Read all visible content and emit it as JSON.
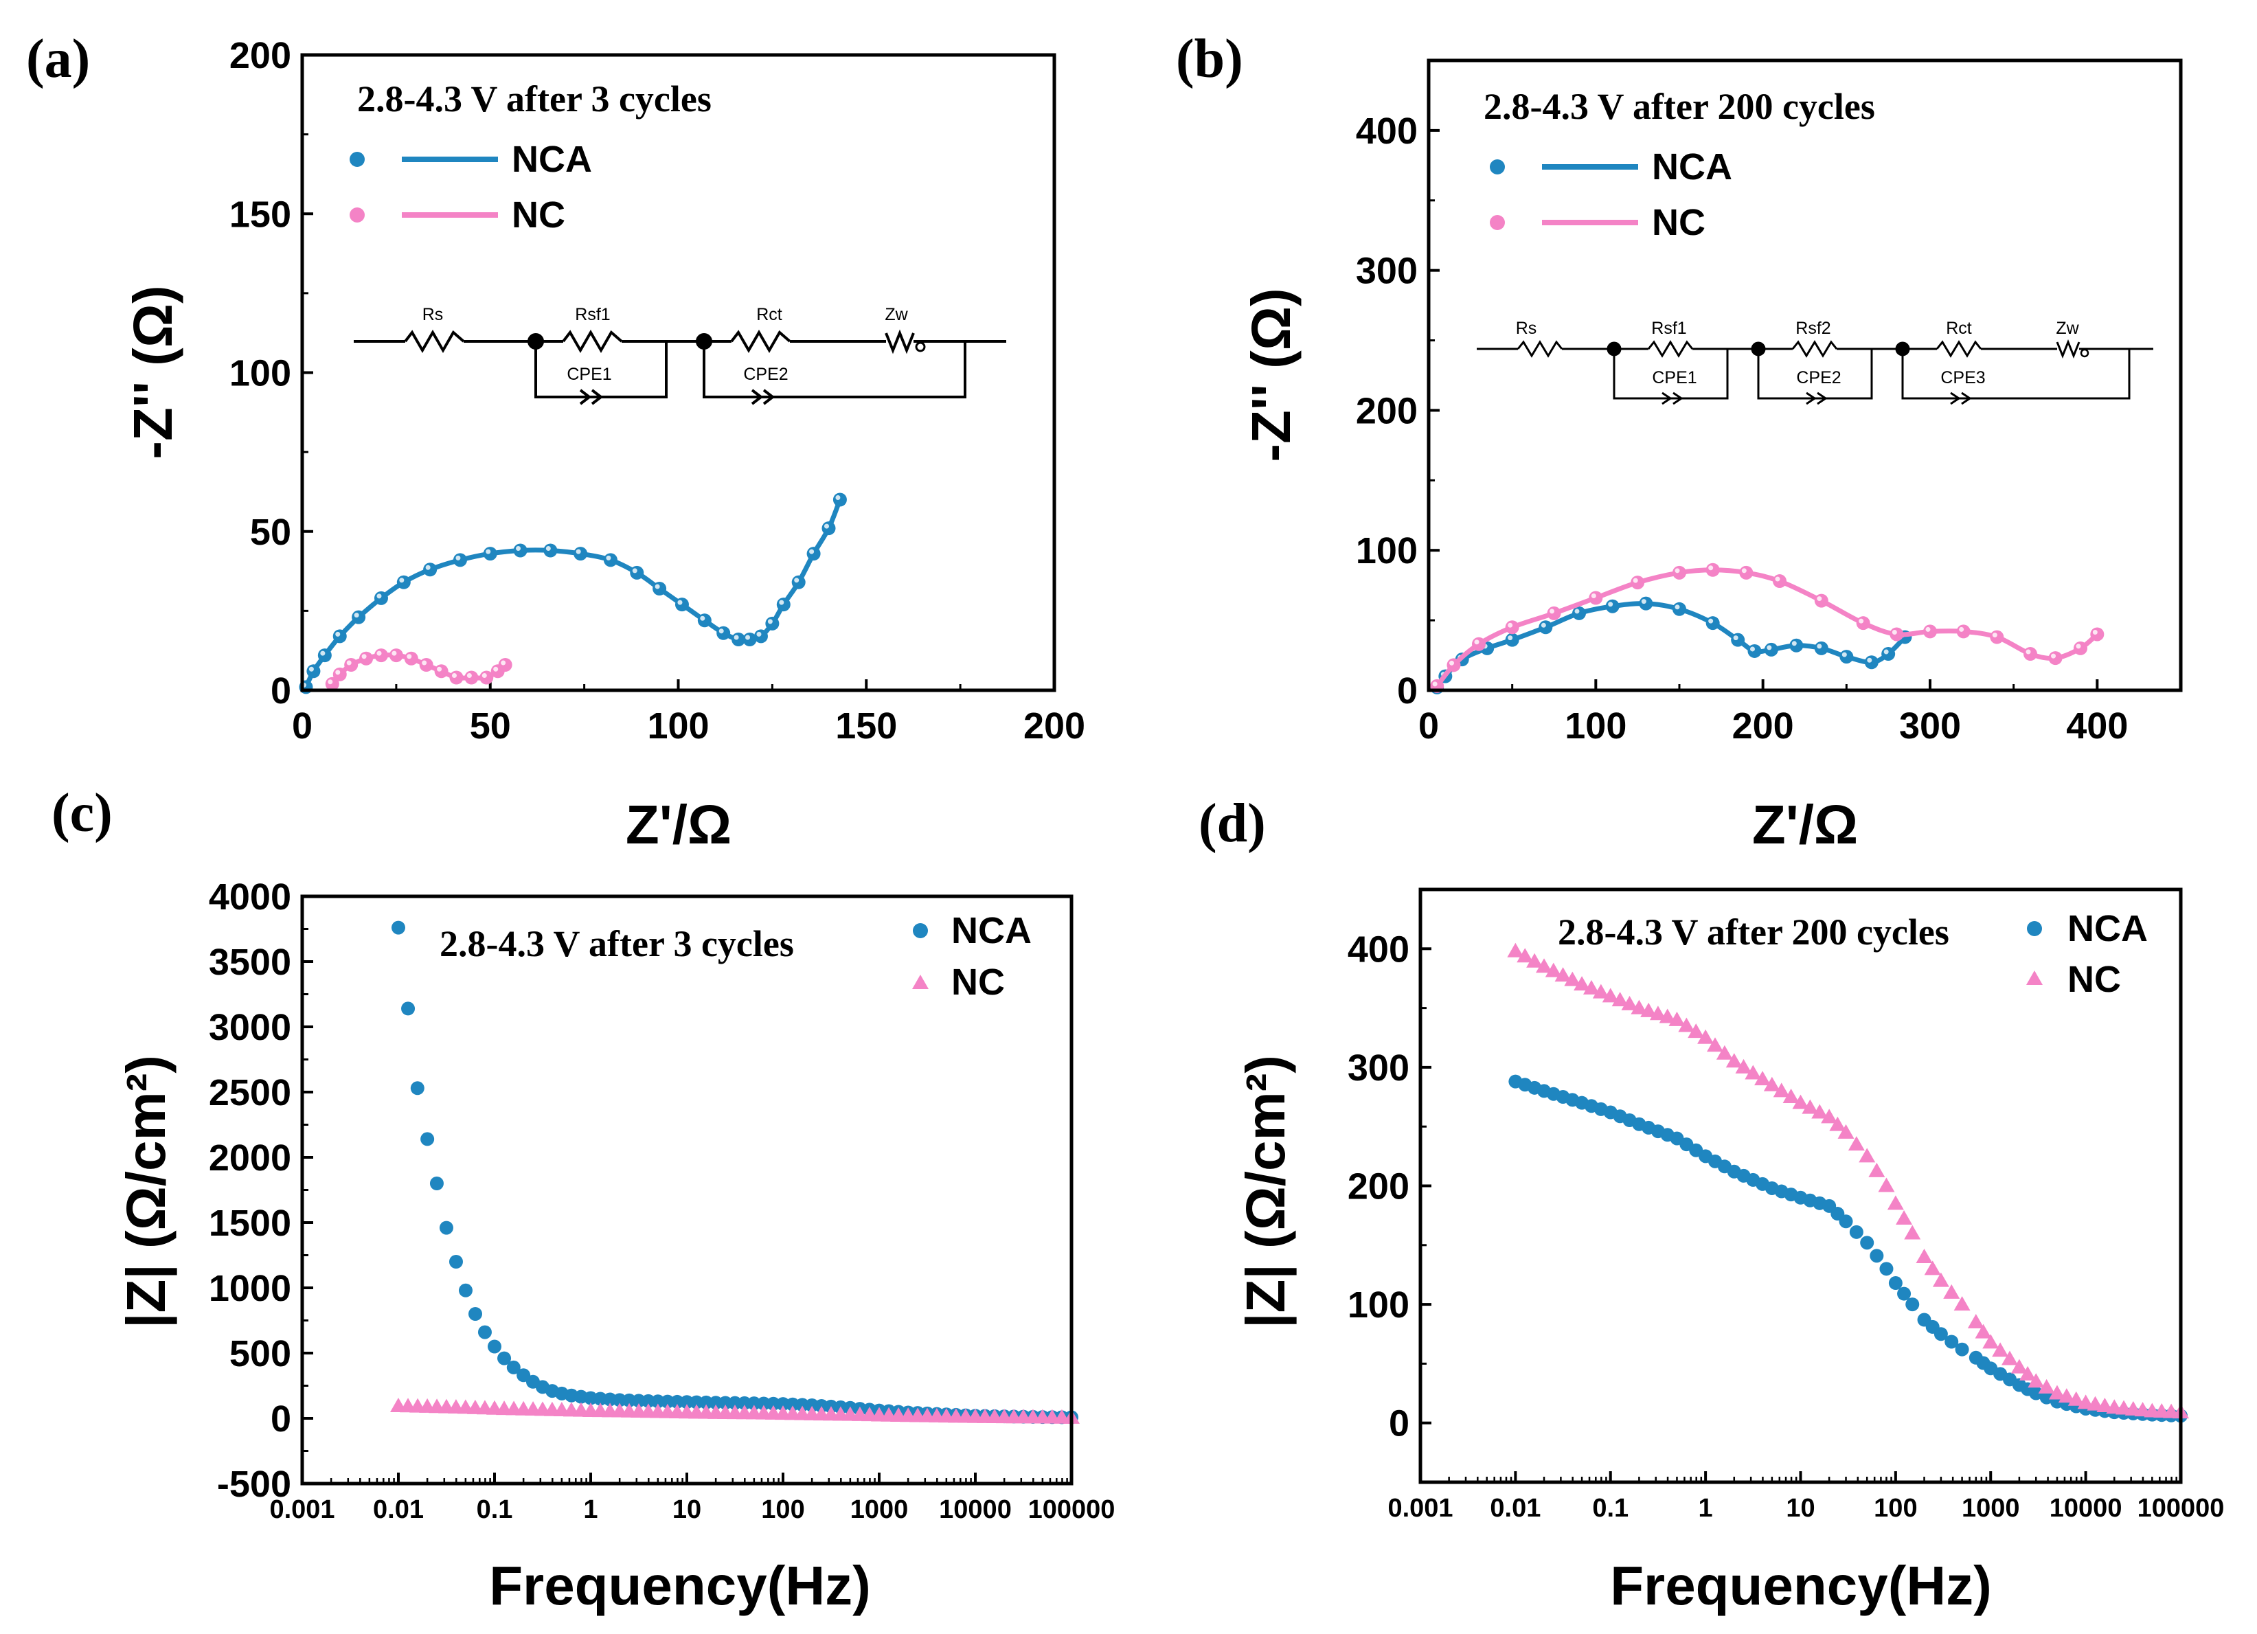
{
  "colors": {
    "nca": "#1f86c0",
    "nc": "#f483c6",
    "axis": "#000000"
  },
  "chart_data": [
    {
      "panel": "(a)",
      "type": "scatter",
      "annotation": "2.8-4.3 V  after 3 cycles",
      "xlabel": "Z'/Ω",
      "ylabel": "-Z'' (Ω)",
      "xlim": [
        0,
        200
      ],
      "ylim": [
        0,
        200
      ],
      "xticks": [
        0,
        50,
        100,
        150,
        200
      ],
      "yticks": [
        0,
        50,
        100,
        150,
        200
      ],
      "legend": "top-left",
      "circuit": [
        "Rs",
        "Rsf1",
        "Rct",
        "Zw",
        "CPE1",
        "CPE2"
      ],
      "series": [
        {
          "name": "NCA",
          "marker": "circle",
          "fit_line": true,
          "x": [
            1,
            3,
            6,
            10,
            15,
            21,
            27,
            34,
            42,
            50,
            58,
            66,
            74,
            82,
            89,
            95,
            101,
            107,
            112,
            116,
            119,
            122,
            125,
            128,
            132,
            136,
            140,
            143
          ],
          "y": [
            1,
            6,
            11,
            17,
            23,
            29,
            34,
            38,
            41,
            43,
            44,
            44,
            43,
            41,
            37,
            32,
            27,
            22,
            18,
            16,
            16,
            17,
            21,
            27,
            34,
            43,
            51,
            60
          ]
        },
        {
          "name": "NC",
          "marker": "circle",
          "fit_line": true,
          "x": [
            8,
            10,
            13,
            17,
            21,
            25,
            29,
            33,
            37,
            41,
            45,
            49,
            52,
            54
          ],
          "y": [
            2,
            5,
            8,
            10,
            11,
            11,
            10,
            8,
            6,
            4,
            4,
            4,
            6,
            8
          ]
        }
      ]
    },
    {
      "panel": "(b)",
      "type": "scatter",
      "annotation": "2.8-4.3 V  after 200 cycles",
      "xlabel": "Z'/Ω",
      "ylabel": "-Z'' (Ω)",
      "xlim": [
        0,
        450
      ],
      "ylim": [
        0,
        450
      ],
      "xticks": [
        0,
        100,
        200,
        300,
        400
      ],
      "yticks": [
        0,
        100,
        200,
        300,
        400
      ],
      "legend": "top-left",
      "circuit": [
        "Rs",
        "Rsf1",
        "Rsf2",
        "Rct",
        "Zw",
        "CPE1",
        "CPE2",
        "CPE3"
      ],
      "series": [
        {
          "name": "NCA",
          "marker": "circle",
          "fit_line": true,
          "x": [
            5,
            10,
            20,
            35,
            50,
            70,
            90,
            110,
            130,
            150,
            170,
            185,
            195,
            205,
            220,
            235,
            250,
            265,
            275,
            285
          ],
          "y": [
            2,
            10,
            22,
            30,
            36,
            45,
            55,
            60,
            62,
            58,
            48,
            36,
            28,
            29,
            32,
            30,
            24,
            20,
            26,
            38
          ]
        },
        {
          "name": "NC",
          "marker": "circle",
          "fit_line": true,
          "x": [
            5,
            15,
            30,
            50,
            75,
            100,
            125,
            150,
            170,
            190,
            210,
            235,
            260,
            280,
            300,
            320,
            340,
            360,
            375,
            390,
            400
          ],
          "y": [
            3,
            18,
            33,
            45,
            55,
            66,
            77,
            84,
            86,
            84,
            78,
            64,
            48,
            40,
            42,
            42,
            38,
            26,
            23,
            30,
            40
          ]
        }
      ]
    },
    {
      "panel": "(c)",
      "type": "scatter",
      "annotation": "2.8-4.3 V  after 3 cycles",
      "xlabel": "Frequency(Hz)",
      "ylabel": "|Z| (Ω/cm²)",
      "xscale": "log",
      "xlim": [
        0.001,
        100000
      ],
      "ylim": [
        -500,
        4000
      ],
      "xticks": [
        "0.001",
        "0.01",
        "0.1",
        "1",
        "10",
        "100",
        "1000",
        "10000",
        "100000"
      ],
      "yticks": [
        -500,
        0,
        500,
        1000,
        1500,
        2000,
        2500,
        3000,
        3500,
        4000
      ],
      "legend": "top-right",
      "series": [
        {
          "name": "NCA",
          "marker": "circle",
          "x": [
            0.01,
            0.0126,
            0.0158,
            0.02,
            0.0251,
            0.0316,
            0.0398,
            0.0501,
            0.0631,
            0.0794,
            0.1,
            0.126,
            0.158,
            0.2,
            0.251,
            0.316,
            0.398,
            0.501,
            0.631,
            0.794,
            1,
            2,
            5,
            10,
            20,
            50,
            100,
            200,
            500,
            1000,
            2000,
            5000,
            10000,
            20000,
            50000,
            100000
          ],
          "y": [
            3760,
            3140,
            2530,
            2140,
            1800,
            1460,
            1200,
            980,
            800,
            660,
            550,
            460,
            390,
            330,
            280,
            240,
            210,
            190,
            175,
            165,
            155,
            140,
            130,
            125,
            120,
            115,
            110,
            100,
            80,
            60,
            45,
            30,
            20,
            15,
            10,
            8
          ]
        },
        {
          "name": "NC",
          "marker": "triangle",
          "x": [
            0.01,
            0.02,
            0.05,
            0.1,
            0.2,
            0.5,
            1,
            2,
            5,
            10,
            20,
            50,
            100,
            200,
            500,
            1000,
            2000,
            5000,
            10000,
            20000,
            50000,
            100000
          ],
          "y": [
            95,
            90,
            82,
            75,
            70,
            63,
            58,
            55,
            50,
            46,
            43,
            40,
            36,
            32,
            28,
            24,
            20,
            15,
            12,
            10,
            8,
            6
          ]
        }
      ]
    },
    {
      "panel": "(d)",
      "type": "scatter",
      "annotation": "2.8-4.3 V  after 200 cycles",
      "xlabel": "Frequency(Hz)",
      "ylabel": "|Z| (Ω/cm²)",
      "xscale": "log",
      "xlim": [
        0.001,
        100000
      ],
      "ylim": [
        -50,
        450
      ],
      "xticks": [
        "0.001",
        "0.01",
        "0.1",
        "1",
        "10",
        "100",
        "1000",
        "10000",
        "100000"
      ],
      "yticks": [
        0,
        100,
        200,
        300,
        400
      ],
      "legend": "top-right",
      "series": [
        {
          "name": "NCA",
          "marker": "circle",
          "x": [
            0.01,
            0.02,
            0.05,
            0.1,
            0.2,
            0.5,
            1,
            2,
            5,
            10,
            20,
            30,
            50,
            80,
            100,
            150,
            200,
            300,
            500,
            700,
            1000,
            2000,
            3000,
            5000,
            10000,
            20000,
            50000,
            100000
          ],
          "y": [
            288,
            280,
            270,
            262,
            252,
            240,
            225,
            212,
            198,
            190,
            183,
            170,
            152,
            130,
            118,
            100,
            87,
            75,
            62,
            55,
            46,
            32,
            25,
            18,
            12,
            9,
            7,
            6
          ]
        },
        {
          "name": "NC",
          "marker": "triangle",
          "x": [
            0.01,
            0.02,
            0.05,
            0.1,
            0.2,
            0.5,
            1,
            2,
            5,
            10,
            20,
            30,
            50,
            80,
            100,
            150,
            200,
            300,
            500,
            700,
            1000,
            2000,
            3000,
            5000,
            10000,
            20000,
            50000,
            100000
          ],
          "y": [
            398,
            385,
            370,
            360,
            350,
            340,
            325,
            305,
            285,
            270,
            258,
            245,
            225,
            200,
            185,
            160,
            140,
            120,
            100,
            85,
            68,
            47,
            35,
            25,
            17,
            13,
            10,
            9
          ]
        }
      ]
    }
  ]
}
